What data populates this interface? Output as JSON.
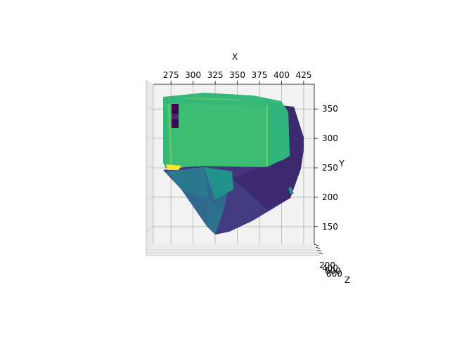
{
  "chart_data": {
    "type": "surface3d",
    "colormap": "viridis",
    "colors": {
      "pane": "#f2f2f2",
      "grid": "#b0b0b0",
      "axis": "#000000",
      "dark": "#440154",
      "mid": "#31688e",
      "teal": "#21918c",
      "green": "#35b779",
      "yellow": "#fde725"
    },
    "grid": true,
    "xlabel": "X",
    "ylabel": "Y",
    "zlabel": "Z",
    "x_ticks": [
      "275",
      "300",
      "325",
      "350",
      "375",
      "400",
      "425"
    ],
    "x_tick_values": [
      275,
      300,
      325,
      350,
      375,
      400,
      425
    ],
    "xlim": [
      255,
      437
    ],
    "y_ticks": [
      "150",
      "200",
      "250",
      "300",
      "350"
    ],
    "y_tick_values": [
      150,
      200,
      250,
      300,
      350
    ],
    "ylim": [
      120,
      392
    ],
    "z_ticks": [
      "200",
      "400",
      "600",
      "800"
    ]
  }
}
